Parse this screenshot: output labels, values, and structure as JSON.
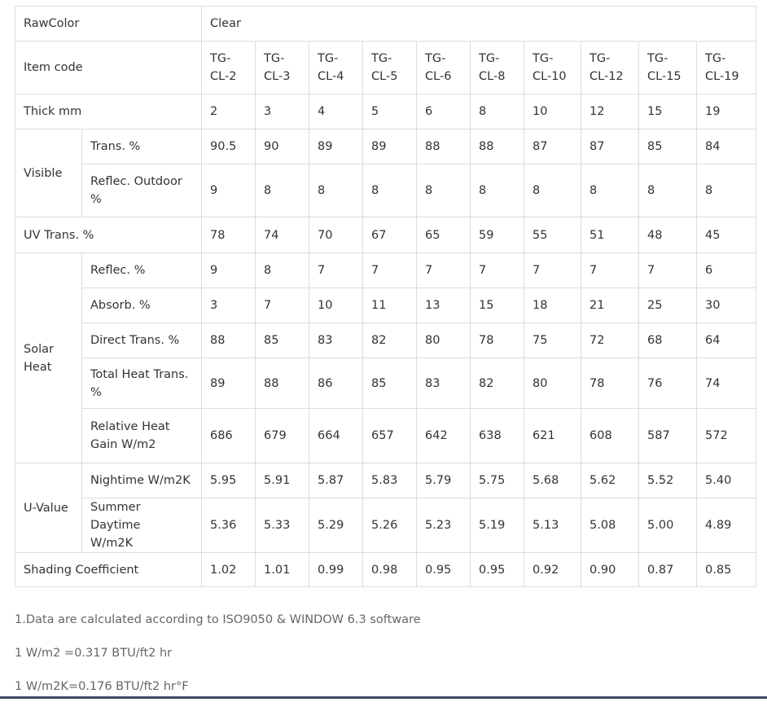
{
  "table": {
    "raw_color": {
      "label": "RawColor",
      "value": "Clear"
    },
    "item_code": {
      "label": "Item code",
      "values": [
        [
          "TG-",
          "CL-2"
        ],
        [
          "TG-",
          "CL-3"
        ],
        [
          "TG-",
          "CL-4"
        ],
        [
          "TG-",
          "CL-5"
        ],
        [
          "TG-",
          "CL-6"
        ],
        [
          "TG-",
          "CL-8"
        ],
        [
          "TG-",
          "CL-10"
        ],
        [
          "TG-",
          "CL-12"
        ],
        [
          "TG-",
          "CL-15"
        ],
        [
          "TG-",
          "CL-19"
        ]
      ]
    },
    "thick": {
      "label": "Thick mm",
      "values": [
        "2",
        "3",
        "4",
        "5",
        "6",
        "8",
        "10",
        "12",
        "15",
        "19"
      ]
    },
    "visible": {
      "group_label": "Visible",
      "rows": [
        {
          "label": [
            "Trans. %"
          ],
          "values": [
            "90.5",
            "90",
            "89",
            "89",
            "88",
            "88",
            "87",
            "87",
            "85",
            "84"
          ]
        },
        {
          "label": [
            "Reflec. Outdoor",
            "%"
          ],
          "values": [
            "9",
            "8",
            "8",
            "8",
            "8",
            "8",
            "8",
            "8",
            "8",
            "8"
          ]
        }
      ]
    },
    "uv": {
      "label": "UV Trans. %",
      "values": [
        "78",
        "74",
        "70",
        "67",
        "65",
        "59",
        "55",
        "51",
        "48",
        "45"
      ]
    },
    "solar_heat": {
      "group_label": [
        "Solar",
        "Heat"
      ],
      "rows": [
        {
          "label": [
            "Reflec. %"
          ],
          "values": [
            "9",
            "8",
            "7",
            "7",
            "7",
            "7",
            "7",
            "7",
            "7",
            "6"
          ]
        },
        {
          "label": [
            "Absorb. %"
          ],
          "values": [
            "3",
            "7",
            "10",
            "11",
            "13",
            "15",
            "18",
            "21",
            "25",
            "30"
          ]
        },
        {
          "label": [
            "Direct Trans. %"
          ],
          "values": [
            "88",
            "85",
            "83",
            "82",
            "80",
            "78",
            "75",
            "72",
            "68",
            "64"
          ]
        },
        {
          "label": [
            "Total Heat Trans.",
            "%"
          ],
          "values": [
            "89",
            "88",
            "86",
            "85",
            "83",
            "82",
            "80",
            "78",
            "76",
            "74"
          ]
        },
        {
          "label": [
            "Relative Heat",
            "Gain W/m2"
          ],
          "values": [
            "686",
            "679",
            "664",
            "657",
            "642",
            "638",
            "621",
            "608",
            "587",
            "572"
          ]
        }
      ]
    },
    "u_value": {
      "group_label": "U-Value",
      "rows": [
        {
          "label": [
            "Nightime W/m2K"
          ],
          "values": [
            "5.95",
            "5.91",
            "5.87",
            "5.83",
            "5.79",
            "5.75",
            "5.68",
            "5.62",
            "5.52",
            "5.40"
          ]
        },
        {
          "label": [
            "Summer Daytime",
            "W/m2K"
          ],
          "values": [
            "5.36",
            "5.33",
            "5.29",
            "5.26",
            "5.23",
            "5.19",
            "5.13",
            "5.08",
            "5.00",
            "4.89"
          ]
        }
      ]
    },
    "shading": {
      "label": "Shading Coefficient",
      "values": [
        "1.02",
        "1.01",
        "0.99",
        "0.98",
        "0.95",
        "0.95",
        "0.92",
        "0.90",
        "0.87",
        "0.85"
      ]
    }
  },
  "notes": [
    "1.Data are calculated according to ISO9050 & WINDOW 6.3 software",
    "1 W/m2 =0.317 BTU/ft2 hr",
    "1 W/m2K=0.176 BTU/ft2 hr°F"
  ]
}
